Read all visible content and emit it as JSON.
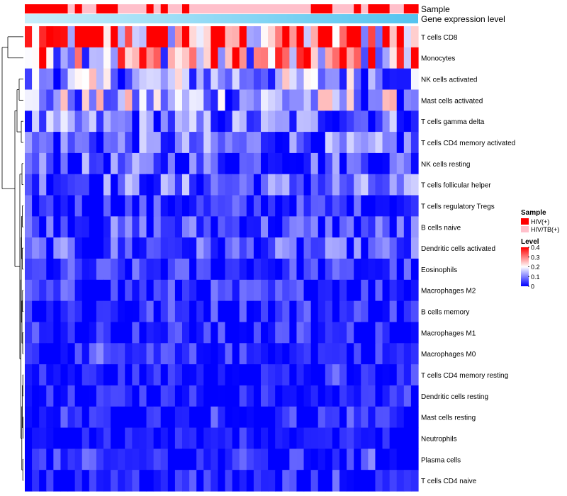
{
  "chart_data": {
    "type": "heatmap",
    "title": "",
    "n_samples": 55,
    "annotation_labels": {
      "sample": "Sample",
      "gene_expression": "Gene expression level"
    },
    "sample_groups": [
      0,
      0,
      0,
      0,
      0,
      0,
      1,
      0,
      1,
      1,
      0,
      0,
      0,
      1,
      1,
      1,
      1,
      0,
      1,
      0,
      1,
      1,
      0,
      1,
      1,
      1,
      1,
      1,
      1,
      1,
      1,
      1,
      1,
      1,
      1,
      1,
      1,
      1,
      1,
      1,
      0,
      0,
      0,
      1,
      1,
      1,
      0,
      1,
      0,
      0,
      0,
      1,
      1,
      0,
      0
    ],
    "legend_sample": {
      "title": "Sample",
      "entries": [
        {
          "label": "HIV(+)",
          "color": "#ff0000"
        },
        {
          "label": "HIV/TB(+)",
          "color": "#ffc0cb"
        }
      ]
    },
    "legend_level": {
      "title": "Level",
      "ticks": [
        0.4,
        0.3,
        0.2,
        0.1,
        0
      ],
      "tick_labels": [
        "0.4",
        "0.3",
        "0.2",
        "0.1",
        "0"
      ],
      "range": [
        0,
        0.4
      ],
      "colors": [
        "#0000ff",
        "#ffffff",
        "#ff0000"
      ]
    },
    "rows": [
      {
        "label": "T cells CD8",
        "base": 0.3
      },
      {
        "label": "Monocytes",
        "base": 0.24
      },
      {
        "label": "NK cells activated",
        "base": 0.12
      },
      {
        "label": "Mast cells activated",
        "base": 0.13
      },
      {
        "label": "T cells gamma delta",
        "base": 0.08
      },
      {
        "label": "T cells CD4 memory activated",
        "base": 0.07
      },
      {
        "label": "NK cells resting",
        "base": 0.06
      },
      {
        "label": "T cells follicular helper",
        "base": 0.07
      },
      {
        "label": "T cells regulatory  Tregs",
        "base": 0.03
      },
      {
        "label": "B cells naive",
        "base": 0.05
      },
      {
        "label": "Dendritic cells activated",
        "base": 0.05
      },
      {
        "label": "Eosinophils",
        "base": 0.03
      },
      {
        "label": "Macrophages M2",
        "base": 0.03
      },
      {
        "label": "B cells memory",
        "base": 0.03
      },
      {
        "label": "Macrophages M1",
        "base": 0.02
      },
      {
        "label": "Macrophages M0",
        "base": 0.02
      },
      {
        "label": "T cells CD4 memory resting",
        "base": 0.01
      },
      {
        "label": "Dendritic cells resting",
        "base": 0.01
      },
      {
        "label": "Mast cells resting",
        "base": 0.01
      },
      {
        "label": "Neutrophils",
        "base": 0.0
      },
      {
        "label": "Plasma cells",
        "base": 0.02
      },
      {
        "label": "T cells CD4 naive",
        "base": 0.01
      }
    ]
  }
}
